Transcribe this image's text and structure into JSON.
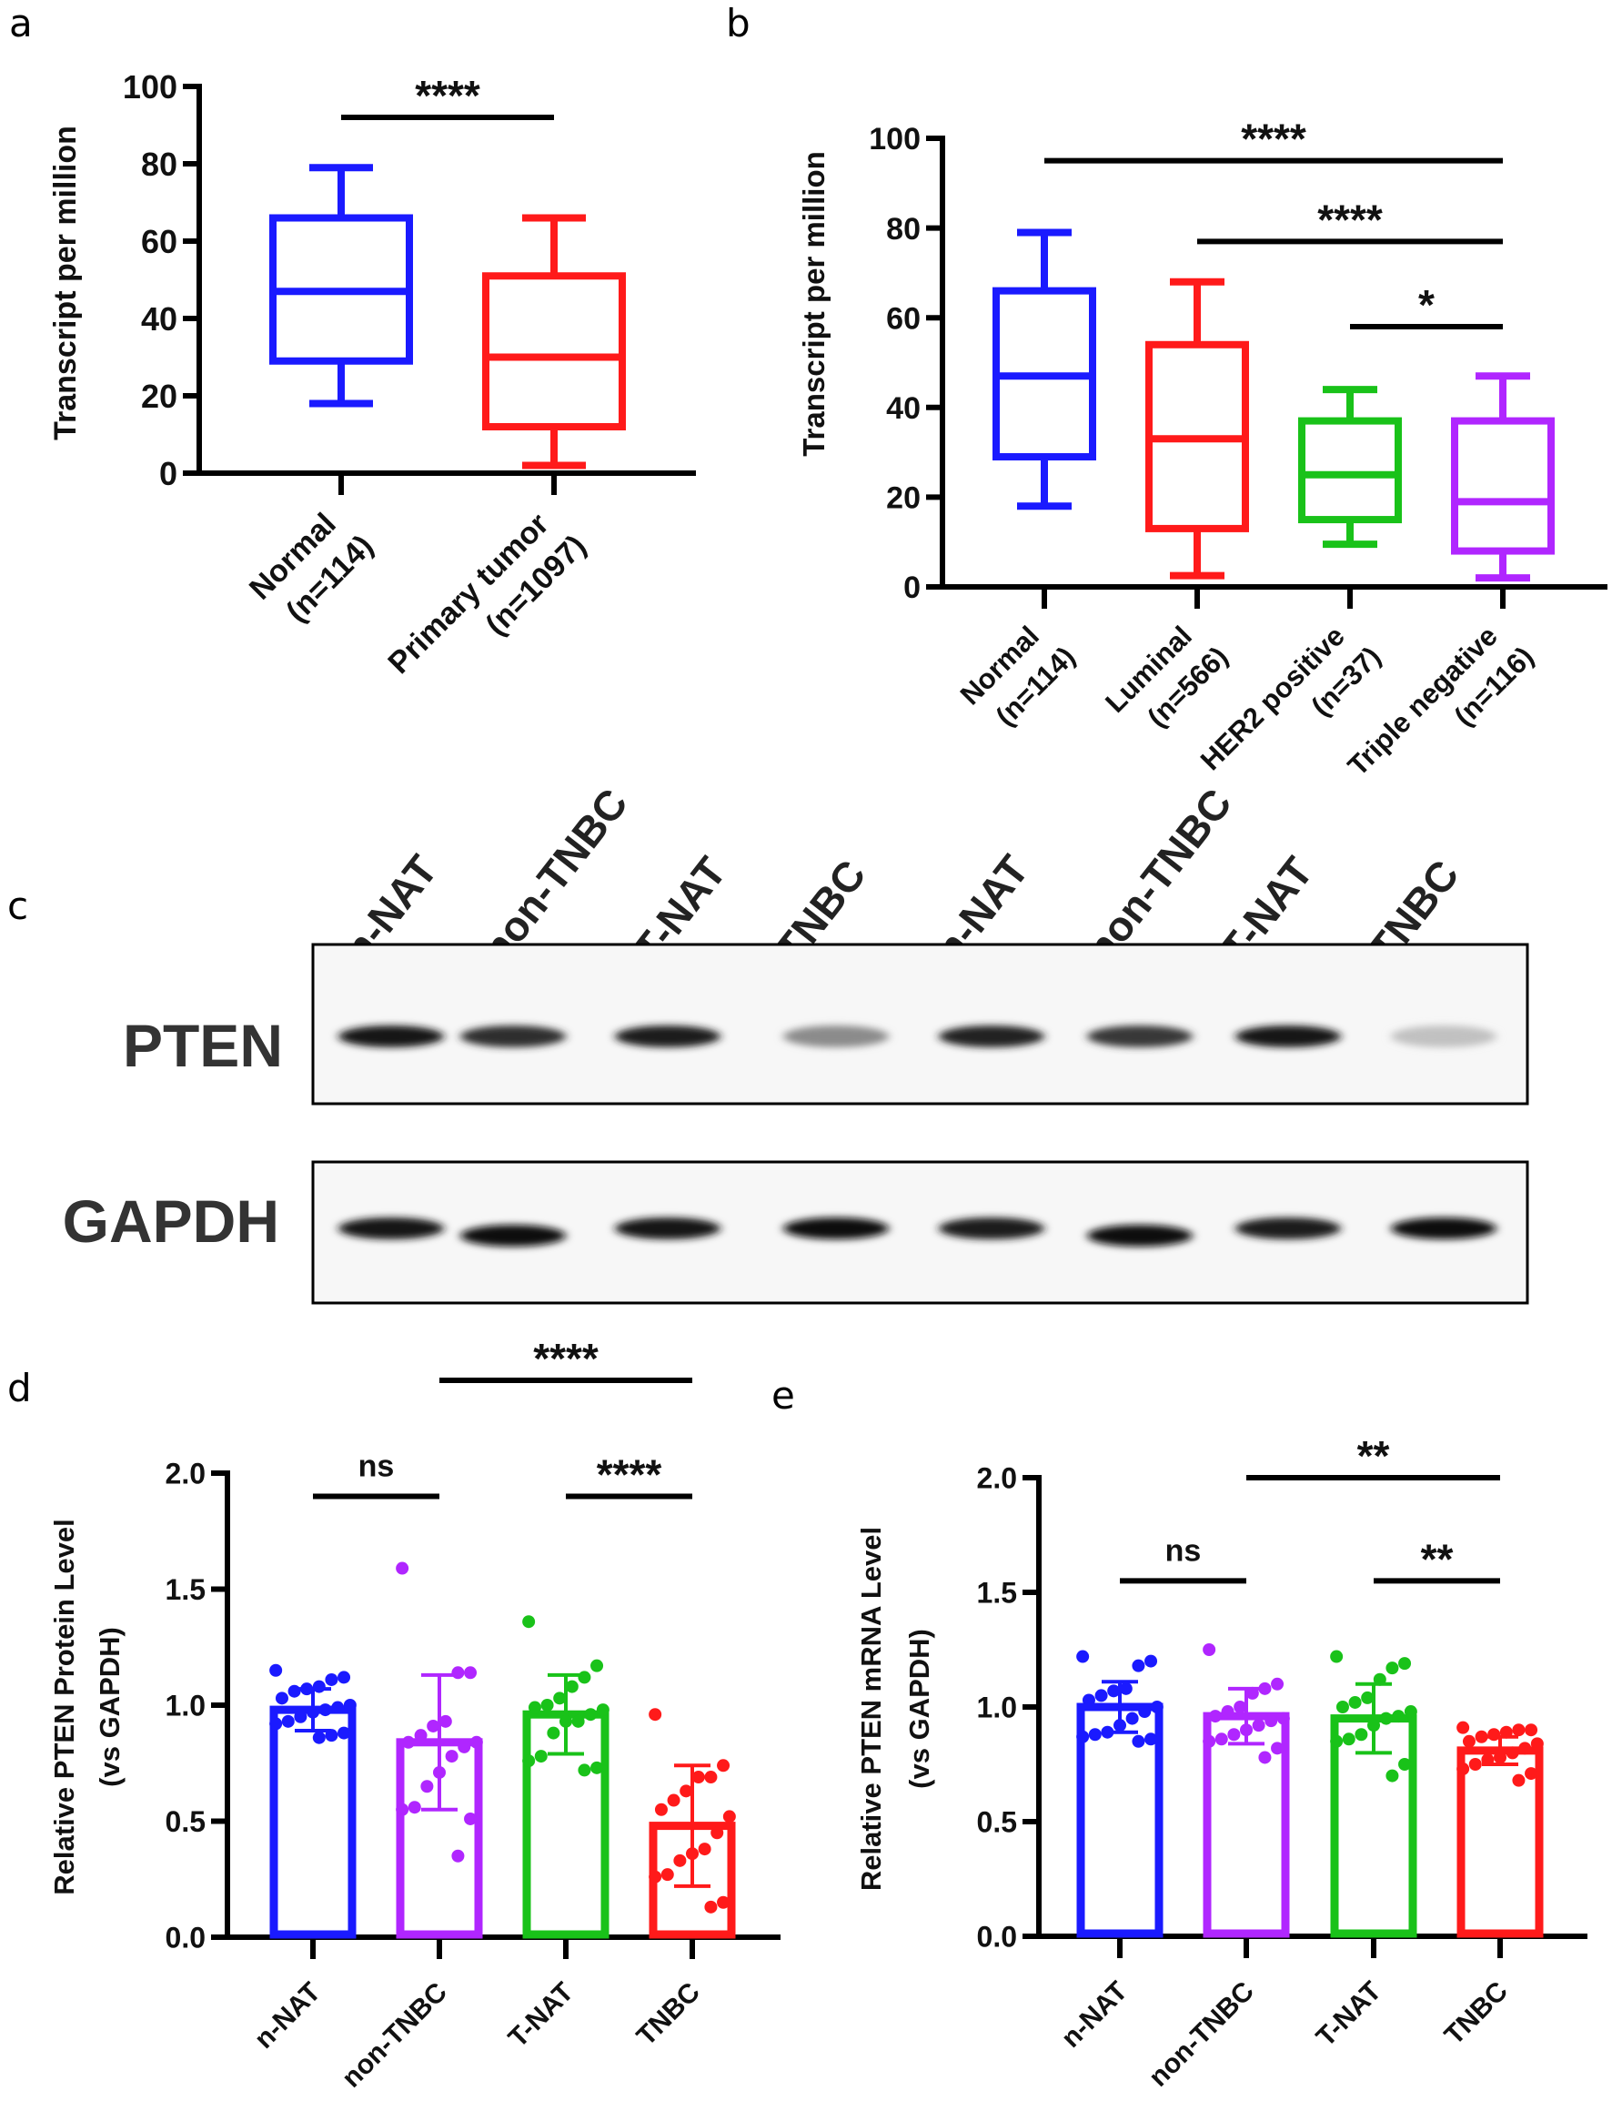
{
  "panel_letters": {
    "a": "a",
    "b": "b",
    "c": "c",
    "d": "d",
    "e": "e"
  },
  "chart_data": [
    {
      "panel": "a",
      "type": "box",
      "ylabel": "Transcript per million",
      "ylim": [
        0,
        100
      ],
      "yticks": [
        "0",
        "20",
        "40",
        "60",
        "80",
        "100"
      ],
      "categories": [
        "Normal",
        "Primary tumor"
      ],
      "n_labels": [
        "(n=114)",
        "(n=1097)"
      ],
      "colors": [
        "#1a1aff",
        "#ff1a1a"
      ],
      "stats": [
        {
          "min": 18,
          "q1": 29,
          "median": 47,
          "q3": 66,
          "max": 79
        },
        {
          "min": 2,
          "q1": 12,
          "median": 30,
          "q3": 51,
          "max": 66
        }
      ],
      "significance": [
        {
          "from": 0,
          "to": 1,
          "y": 92,
          "label": "****"
        }
      ]
    },
    {
      "panel": "b",
      "type": "box",
      "ylabel": "Transcript per million",
      "ylim": [
        0,
        100
      ],
      "yticks": [
        "0",
        "20",
        "40",
        "60",
        "80",
        "100"
      ],
      "categories": [
        "Normal",
        "Luminal",
        "HER2 positive",
        "Triple negative"
      ],
      "n_labels": [
        "(n=114)",
        "(n=566)",
        "(n=37)",
        "(n=116)"
      ],
      "colors": [
        "#1a1aff",
        "#ff1a1a",
        "#19c219",
        "#b026ff"
      ],
      "stats": [
        {
          "min": 18,
          "q1": 29,
          "median": 47,
          "q3": 66,
          "max": 79
        },
        {
          "min": 2.5,
          "q1": 13,
          "median": 33,
          "q3": 54,
          "max": 68
        },
        {
          "min": 9.5,
          "q1": 15,
          "median": 25,
          "q3": 37,
          "max": 44
        },
        {
          "min": 2,
          "q1": 8,
          "median": 19,
          "q3": 37,
          "max": 47
        }
      ],
      "significance": [
        {
          "from": 0,
          "to": 3,
          "y": 95,
          "label": "****"
        },
        {
          "from": 1,
          "to": 3,
          "y": 77,
          "label": "****"
        },
        {
          "from": 2,
          "to": 3,
          "y": 58,
          "label": "*"
        }
      ]
    },
    {
      "panel": "d",
      "type": "bar",
      "ylabel": [
        "Relative PTEN Protein Level",
        "(vs GAPDH)"
      ],
      "ylim": [
        0,
        2.0
      ],
      "yticks": [
        "0.0",
        "0.5",
        "1.0",
        "1.5",
        "2.0"
      ],
      "categories": [
        "n-NAT",
        "non-TNBC",
        "T-NAT",
        "TNBC"
      ],
      "colors": [
        "#1a1aff",
        "#b026ff",
        "#19c219",
        "#ff1a1a"
      ],
      "means": [
        0.98,
        0.84,
        0.96,
        0.48
      ],
      "sd": [
        0.09,
        0.29,
        0.17,
        0.26
      ],
      "points": [
        [
          1.15,
          1.12,
          1.11,
          1.08,
          1.07,
          1.06,
          1.03,
          1.0,
          0.99,
          0.98,
          0.97,
          0.95,
          0.93,
          0.92,
          0.88,
          0.87,
          0.86
        ],
        [
          1.59,
          1.14,
          1.14,
          0.93,
          0.91,
          0.87,
          0.84,
          0.84,
          0.82,
          0.78,
          0.71,
          0.65,
          0.56,
          0.55,
          0.51,
          0.35
        ],
        [
          1.36,
          1.17,
          1.12,
          1.08,
          1.03,
          1.0,
          0.99,
          0.98,
          0.96,
          0.93,
          0.93,
          0.88,
          0.78,
          0.76,
          0.73,
          0.72
        ],
        [
          0.96,
          0.74,
          0.69,
          0.69,
          0.63,
          0.59,
          0.55,
          0.52,
          0.45,
          0.38,
          0.36,
          0.33,
          0.27,
          0.26,
          0.15,
          0.13
        ]
      ],
      "significance": [
        {
          "from": 1,
          "to": 3,
          "y": 2.4,
          "label": "****"
        },
        {
          "from": 0,
          "to": 1,
          "y": 1.9,
          "label": "ns"
        },
        {
          "from": 2,
          "to": 3,
          "y": 1.9,
          "label": "****"
        }
      ]
    },
    {
      "panel": "e",
      "type": "bar",
      "ylabel": [
        "Relative PTEN mRNA Level",
        "(vs GAPDH)"
      ],
      "ylim": [
        0,
        2.0
      ],
      "yticks": [
        "0.0",
        "0.5",
        "1.0",
        "1.5",
        "2.0"
      ],
      "categories": [
        "n-NAT",
        "non-TNBC",
        "T-NAT",
        "TNBC"
      ],
      "colors": [
        "#1a1aff",
        "#b026ff",
        "#19c219",
        "#ff1a1a"
      ],
      "means": [
        1.0,
        0.96,
        0.95,
        0.81
      ],
      "sd": [
        0.11,
        0.12,
        0.15,
        0.06
      ],
      "points": [
        [
          1.22,
          1.2,
          1.18,
          1.08,
          1.07,
          1.05,
          1.03,
          1.0,
          0.98,
          0.95,
          0.92,
          0.89,
          0.88,
          0.87,
          0.86,
          0.85
        ],
        [
          1.25,
          1.1,
          1.08,
          1.06,
          1.0,
          0.98,
          0.96,
          0.95,
          0.94,
          0.92,
          0.9,
          0.88,
          0.86,
          0.85,
          0.82,
          0.78
        ],
        [
          1.22,
          1.19,
          1.17,
          1.12,
          1.04,
          1.02,
          1.0,
          0.98,
          0.96,
          0.95,
          0.92,
          0.88,
          0.86,
          0.85,
          0.75,
          0.7
        ],
        [
          0.91,
          0.9,
          0.9,
          0.89,
          0.88,
          0.87,
          0.85,
          0.84,
          0.82,
          0.8,
          0.78,
          0.77,
          0.75,
          0.73,
          0.71,
          0.68
        ]
      ],
      "significance": [
        {
          "from": 1,
          "to": 3,
          "y": 2.0,
          "label": "**"
        },
        {
          "from": 0,
          "to": 1,
          "y": 1.55,
          "label": "ns"
        },
        {
          "from": 2,
          "to": 3,
          "y": 1.55,
          "label": "**"
        }
      ]
    }
  ],
  "blot": {
    "lanes": [
      "n-NAT",
      "non-TNBC",
      "T-NAT",
      "TNBC",
      "n-NAT",
      "non-TNBC",
      "T-NAT",
      "TNBC"
    ],
    "rows": [
      {
        "label": "PTEN",
        "band_intensity": [
          0.95,
          0.85,
          0.92,
          0.45,
          0.9,
          0.8,
          0.95,
          0.22
        ]
      },
      {
        "label": "GAPDH",
        "band_intensity": [
          0.95,
          0.97,
          0.95,
          0.97,
          0.93,
          0.97,
          0.92,
          0.98
        ]
      }
    ]
  }
}
